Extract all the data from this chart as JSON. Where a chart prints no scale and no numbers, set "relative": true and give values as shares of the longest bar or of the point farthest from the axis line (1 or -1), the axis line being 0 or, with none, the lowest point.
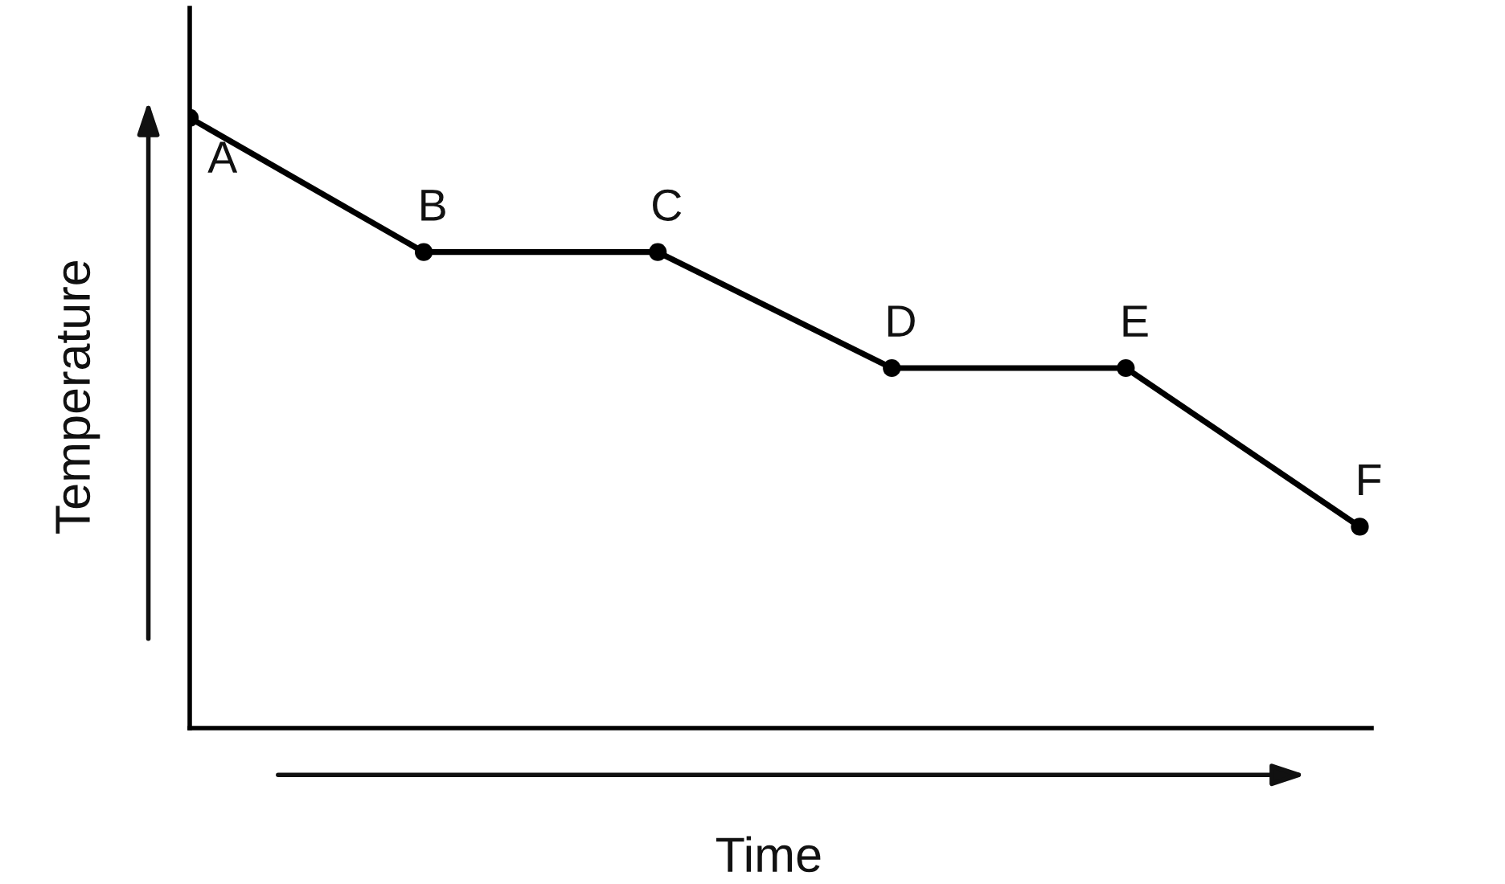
{
  "chart_data": {
    "type": "line",
    "xlabel": "Time",
    "ylabel": "Temperature",
    "relative": true,
    "tick_labels": false,
    "marker": "circle",
    "line_style": "solid",
    "categories": [
      "A",
      "B",
      "C",
      "D",
      "E",
      "F"
    ],
    "series": [
      {
        "color": "#000000",
        "values": [
          1,
          0.78,
          0.78,
          0.59,
          0.59,
          0.33
        ]
      }
    ]
  }
}
